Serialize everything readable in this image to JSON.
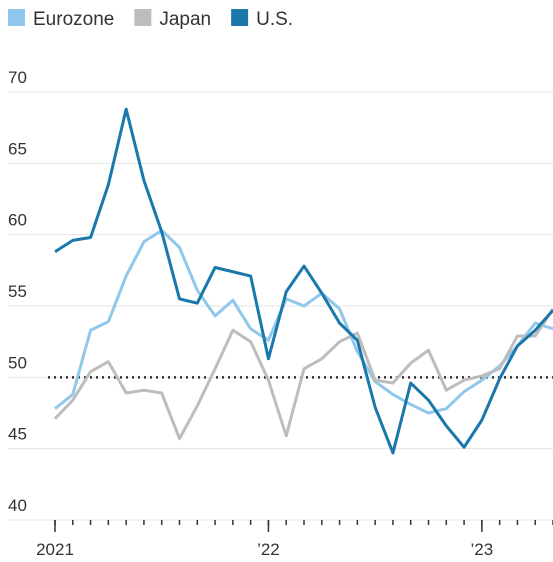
{
  "chart_data": {
    "type": "line",
    "x": [
      0,
      1,
      2,
      3,
      4,
      5,
      6,
      7,
      8,
      9,
      10,
      11,
      12,
      13,
      14,
      15,
      16,
      17,
      18,
      19,
      20,
      21,
      22,
      23,
      24,
      25,
      26,
      27,
      28
    ],
    "xlim": [
      0,
      28
    ],
    "xticks": [
      {
        "value": 0,
        "label": "2021"
      },
      {
        "value": 12,
        "label": "’22"
      },
      {
        "value": 24,
        "label": "’23"
      }
    ],
    "ylim": [
      40,
      70
    ],
    "yticks": [
      40,
      45,
      50,
      55,
      60,
      65,
      70
    ],
    "grid": true,
    "reference_line": 50,
    "legend": "top-left",
    "series": [
      {
        "name": "Eurozone",
        "color": "#8fc8ec",
        "values": [
          47.8,
          48.8,
          53.3,
          53.9,
          57.1,
          59.5,
          60.3,
          59.1,
          56.1,
          54.3,
          55.4,
          53.4,
          52.6,
          55.5,
          55.0,
          55.9,
          54.8,
          51.8,
          49.7,
          48.8,
          48.1,
          47.5,
          47.8,
          49.0,
          49.8,
          50.8,
          52.2,
          53.8,
          53.4
        ]
      },
      {
        "name": "Japan",
        "color": "#bdbdbd",
        "values": [
          47.1,
          48.4,
          50.4,
          51.1,
          48.9,
          49.1,
          48.9,
          45.7,
          48.0,
          50.6,
          53.3,
          52.5,
          49.8,
          45.9,
          50.6,
          51.3,
          52.5,
          53.1,
          49.8,
          49.6,
          51.0,
          51.9,
          49.1,
          49.8,
          50.1,
          50.6,
          52.9,
          52.9,
          54.8
        ]
      },
      {
        "name": "U.S.",
        "color": "#1a78ab",
        "values": [
          58.8,
          59.6,
          59.8,
          63.5,
          68.8,
          63.8,
          60.2,
          55.5,
          55.2,
          57.7,
          57.4,
          57.1,
          51.3,
          56.0,
          57.8,
          55.9,
          53.8,
          52.6,
          47.9,
          44.7,
          49.6,
          48.4,
          46.6,
          45.1,
          47.0,
          49.9,
          52.2,
          53.3,
          54.7
        ]
      }
    ]
  }
}
